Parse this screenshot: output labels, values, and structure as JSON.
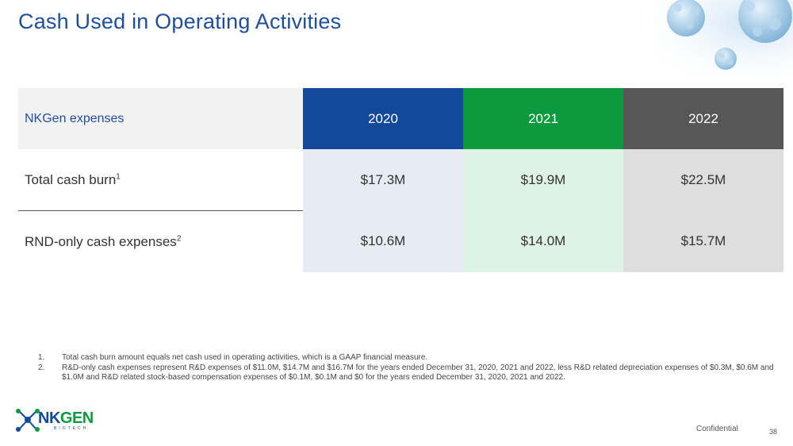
{
  "slide": {
    "title": "Cash Used in Operating Activities",
    "page_number": "38",
    "confidential": "Confidential"
  },
  "table": {
    "header_label": "NKGen expenses",
    "years": [
      "2020",
      "2021",
      "2022"
    ],
    "rows": [
      {
        "label": "Total cash burn",
        "footnote": "1",
        "values": [
          "$17.3M",
          "$19.9M",
          "$22.5M"
        ]
      },
      {
        "label": "RND-only cash expenses",
        "footnote": "2",
        "values": [
          "$10.6M",
          "$14.0M",
          "$15.7M"
        ]
      }
    ]
  },
  "footnotes": [
    {
      "num": "1.",
      "text": "Total cash burn amount equals net cash used in operating activities, which is a GAAP financial measure."
    },
    {
      "num": "2.",
      "text": "R&D-only cash expenses represent R&D expenses of $11.0M, $14.7M and $16.7M for the years ended December 31, 2020, 2021 and 2022, less R&D related depreciation expenses of $0.3M, $0.6M and $1.0M and R&D related stock-based compensation expenses of $0.1M, $0.1M and $0 for the years ended December 31, 2020, 2021 and 2022."
    }
  ],
  "logo": {
    "main_a": "NK",
    "main_b": "GEN",
    "sub": "BIOTECH"
  },
  "colors": {
    "title": "#1f4e9c",
    "y2020": "#12499a",
    "y2021": "#0c9a3f",
    "y2022": "#575757"
  }
}
